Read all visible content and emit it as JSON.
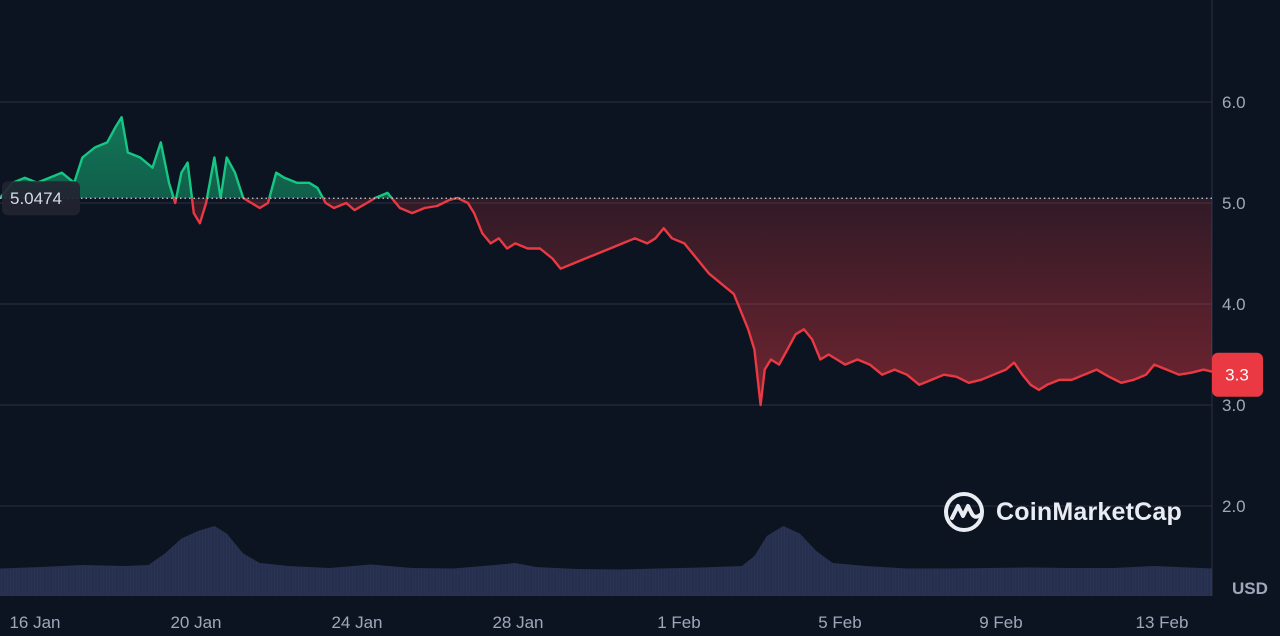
{
  "chart_data": {
    "type": "line",
    "title": "",
    "xlabel": "",
    "ylabel": "",
    "currency": "USD",
    "ylim": [
      1.5,
      7.0
    ],
    "y_ticks": [
      "2.0",
      "3.0",
      "4.0",
      "5.0",
      "6.0"
    ],
    "y_tick_values": [
      2.0,
      3.0,
      4.0,
      5.0,
      6.0
    ],
    "x_ticks": [
      "16 Jan",
      "20 Jan",
      "24 Jan",
      "28 Jan",
      "1 Feb",
      "5 Feb",
      "9 Feb",
      "13 Feb"
    ],
    "x_tick_days": [
      0,
      4,
      8,
      12,
      16,
      20,
      24,
      28
    ],
    "xlim_days": [
      0,
      29.4
    ],
    "reference_value": 5.0474,
    "reference_label": "5.0474",
    "last_value": 3.3,
    "last_label": "3.3",
    "grid": true,
    "colors": {
      "above": "#16c784",
      "below": "#ea3943",
      "volume": "#2b3656",
      "grid": "#2a3143",
      "background": "#0d1421"
    },
    "series": [
      {
        "values": [
          [
            0.0,
            5.05
          ],
          [
            0.3,
            5.2
          ],
          [
            0.6,
            5.25
          ],
          [
            0.9,
            5.2
          ],
          [
            1.2,
            5.25
          ],
          [
            1.5,
            5.3
          ],
          [
            1.8,
            5.2
          ],
          [
            2.0,
            5.45
          ],
          [
            2.3,
            5.55
          ],
          [
            2.6,
            5.6
          ],
          [
            2.8,
            5.75
          ],
          [
            2.95,
            5.85
          ],
          [
            3.1,
            5.5
          ],
          [
            3.4,
            5.45
          ],
          [
            3.7,
            5.35
          ],
          [
            3.9,
            5.6
          ],
          [
            4.1,
            5.2
          ],
          [
            4.25,
            5.0
          ],
          [
            4.4,
            5.3
          ],
          [
            4.55,
            5.4
          ],
          [
            4.7,
            4.9
          ],
          [
            4.85,
            4.8
          ],
          [
            5.0,
            5.0
          ],
          [
            5.2,
            5.45
          ],
          [
            5.35,
            5.05
          ],
          [
            5.5,
            5.45
          ],
          [
            5.7,
            5.3
          ],
          [
            5.9,
            5.05
          ],
          [
            6.1,
            5.0
          ],
          [
            6.3,
            4.95
          ],
          [
            6.5,
            5.0
          ],
          [
            6.7,
            5.3
          ],
          [
            6.9,
            5.25
          ],
          [
            7.2,
            5.2
          ],
          [
            7.5,
            5.2
          ],
          [
            7.7,
            5.15
          ],
          [
            7.9,
            5.0
          ],
          [
            8.1,
            4.95
          ],
          [
            8.4,
            5.0
          ],
          [
            8.6,
            4.93
          ],
          [
            8.9,
            5.0
          ],
          [
            9.1,
            5.05
          ],
          [
            9.4,
            5.1
          ],
          [
            9.7,
            4.95
          ],
          [
            10.0,
            4.9
          ],
          [
            10.3,
            4.95
          ],
          [
            10.6,
            4.97
          ],
          [
            10.9,
            5.03
          ],
          [
            11.1,
            5.05
          ],
          [
            11.35,
            5.0
          ],
          [
            11.5,
            4.9
          ],
          [
            11.7,
            4.7
          ],
          [
            11.9,
            4.6
          ],
          [
            12.1,
            4.65
          ],
          [
            12.3,
            4.55
          ],
          [
            12.5,
            4.6
          ],
          [
            12.8,
            4.55
          ],
          [
            13.1,
            4.55
          ],
          [
            13.4,
            4.45
          ],
          [
            13.6,
            4.35
          ],
          [
            13.9,
            4.4
          ],
          [
            14.2,
            4.45
          ],
          [
            14.5,
            4.5
          ],
          [
            14.8,
            4.55
          ],
          [
            15.1,
            4.6
          ],
          [
            15.4,
            4.65
          ],
          [
            15.7,
            4.6
          ],
          [
            15.9,
            4.65
          ],
          [
            16.1,
            4.75
          ],
          [
            16.3,
            4.65
          ],
          [
            16.6,
            4.6
          ],
          [
            16.9,
            4.45
          ],
          [
            17.2,
            4.3
          ],
          [
            17.5,
            4.2
          ],
          [
            17.8,
            4.1
          ],
          [
            18.0,
            3.9
          ],
          [
            18.15,
            3.75
          ],
          [
            18.3,
            3.55
          ],
          [
            18.45,
            3.0
          ],
          [
            18.55,
            3.35
          ],
          [
            18.7,
            3.45
          ],
          [
            18.9,
            3.4
          ],
          [
            19.1,
            3.55
          ],
          [
            19.3,
            3.7
          ],
          [
            19.5,
            3.75
          ],
          [
            19.7,
            3.65
          ],
          [
            19.9,
            3.45
          ],
          [
            20.1,
            3.5
          ],
          [
            20.3,
            3.45
          ],
          [
            20.5,
            3.4
          ],
          [
            20.8,
            3.45
          ],
          [
            21.1,
            3.4
          ],
          [
            21.4,
            3.3
          ],
          [
            21.7,
            3.35
          ],
          [
            22.0,
            3.3
          ],
          [
            22.3,
            3.2
          ],
          [
            22.6,
            3.25
          ],
          [
            22.9,
            3.3
          ],
          [
            23.2,
            3.28
          ],
          [
            23.5,
            3.22
          ],
          [
            23.8,
            3.25
          ],
          [
            24.1,
            3.3
          ],
          [
            24.4,
            3.35
          ],
          [
            24.6,
            3.42
          ],
          [
            24.8,
            3.3
          ],
          [
            25.0,
            3.2
          ],
          [
            25.2,
            3.15
          ],
          [
            25.4,
            3.2
          ],
          [
            25.7,
            3.25
          ],
          [
            26.0,
            3.25
          ],
          [
            26.3,
            3.3
          ],
          [
            26.6,
            3.35
          ],
          [
            26.9,
            3.28
          ],
          [
            27.2,
            3.22
          ],
          [
            27.5,
            3.25
          ],
          [
            27.8,
            3.3
          ],
          [
            28.0,
            3.4
          ],
          [
            28.3,
            3.35
          ],
          [
            28.6,
            3.3
          ],
          [
            28.9,
            3.32
          ],
          [
            29.2,
            3.35
          ],
          [
            29.4,
            3.33
          ]
        ]
      }
    ],
    "volume": [
      [
        0,
        0.55
      ],
      [
        1,
        0.58
      ],
      [
        2,
        0.62
      ],
      [
        3,
        0.6
      ],
      [
        3.6,
        0.62
      ],
      [
        4.0,
        0.85
      ],
      [
        4.4,
        1.15
      ],
      [
        4.8,
        1.3
      ],
      [
        5.2,
        1.4
      ],
      [
        5.5,
        1.25
      ],
      [
        5.9,
        0.85
      ],
      [
        6.3,
        0.66
      ],
      [
        7,
        0.6
      ],
      [
        8,
        0.56
      ],
      [
        9,
        0.63
      ],
      [
        10,
        0.56
      ],
      [
        11,
        0.55
      ],
      [
        12,
        0.62
      ],
      [
        12.5,
        0.66
      ],
      [
        13,
        0.58
      ],
      [
        14,
        0.54
      ],
      [
        15,
        0.53
      ],
      [
        16,
        0.55
      ],
      [
        17,
        0.57
      ],
      [
        18,
        0.6
      ],
      [
        18.3,
        0.8
      ],
      [
        18.6,
        1.2
      ],
      [
        19.0,
        1.4
      ],
      [
        19.4,
        1.25
      ],
      [
        19.8,
        0.9
      ],
      [
        20.2,
        0.66
      ],
      [
        21,
        0.6
      ],
      [
        22,
        0.55
      ],
      [
        23,
        0.55
      ],
      [
        24,
        0.56
      ],
      [
        25,
        0.57
      ],
      [
        26,
        0.56
      ],
      [
        27,
        0.56
      ],
      [
        28,
        0.6
      ],
      [
        29.4,
        0.55
      ]
    ]
  },
  "brand": {
    "name": "CoinMarketCap",
    "logo_icon": "coinmarketcap-logo-icon"
  }
}
